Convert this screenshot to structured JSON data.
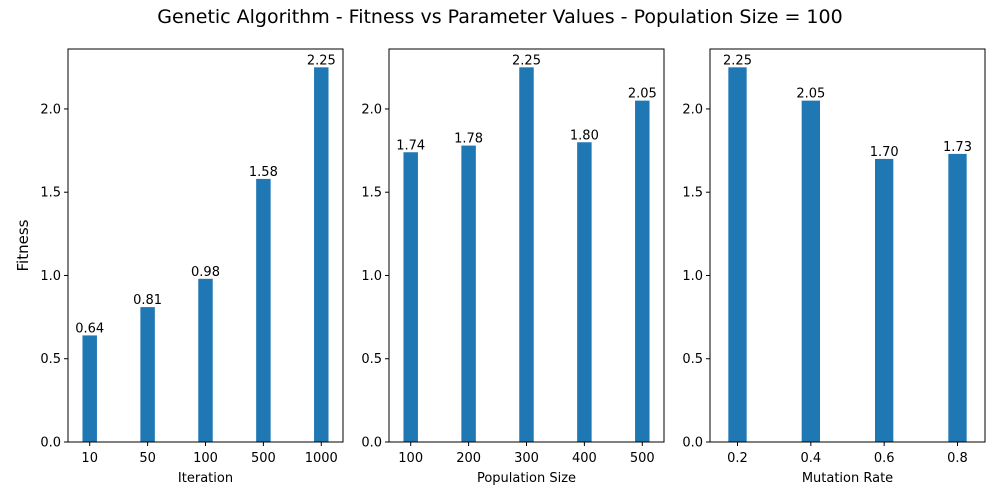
{
  "title": "Genetic Algorithm - Fitness vs Parameter Values - Population Size = 100",
  "colors": {
    "bar": "#1f77b4",
    "axis": "#000000"
  },
  "chart_data": [
    {
      "type": "bar",
      "categories": [
        "10",
        "50",
        "100",
        "500",
        "1000"
      ],
      "values": [
        0.64,
        0.81,
        0.98,
        1.58,
        2.25
      ],
      "value_labels": [
        "0.64",
        "0.81",
        "0.98",
        "1.58",
        "2.25"
      ],
      "xlabel": "Iteration",
      "ylabel": "Fitness",
      "ylim": [
        0,
        2.36
      ],
      "yticks": [
        0.0,
        0.5,
        1.0,
        1.5,
        2.0
      ],
      "ytick_labels": [
        "0.0",
        "0.5",
        "1.0",
        "1.5",
        "2.0"
      ]
    },
    {
      "type": "bar",
      "categories": [
        "100",
        "200",
        "300",
        "400",
        "500"
      ],
      "values": [
        1.74,
        1.78,
        2.25,
        1.8,
        2.05
      ],
      "value_labels": [
        "1.74",
        "1.78",
        "2.25",
        "1.80",
        "2.05"
      ],
      "xlabel": "Population Size",
      "ylabel": "",
      "ylim": [
        0,
        2.36
      ],
      "yticks": [
        0.0,
        0.5,
        1.0,
        1.5,
        2.0
      ],
      "ytick_labels": [
        "0.0",
        "0.5",
        "1.0",
        "1.5",
        "2.0"
      ]
    },
    {
      "type": "bar",
      "categories": [
        "0.2",
        "0.4",
        "0.6",
        "0.8"
      ],
      "values": [
        2.25,
        2.05,
        1.7,
        1.73
      ],
      "value_labels": [
        "2.25",
        "2.05",
        "1.70",
        "1.73"
      ],
      "xlabel": "Mutation Rate",
      "ylabel": "",
      "ylim": [
        0,
        2.36
      ],
      "yticks": [
        0.0,
        0.5,
        1.0,
        1.5,
        2.0
      ],
      "ytick_labels": [
        "0.0",
        "0.5",
        "1.0",
        "1.5",
        "2.0"
      ]
    }
  ]
}
